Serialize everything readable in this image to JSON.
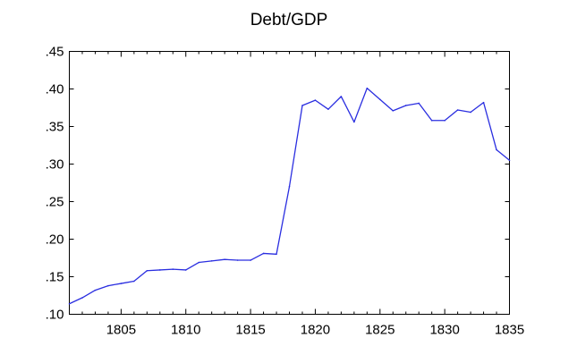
{
  "chart_data": {
    "type": "line",
    "title": "Debt/GDP",
    "xlabel": "",
    "ylabel": "",
    "xlim": [
      1801,
      1835
    ],
    "ylim": [
      0.1,
      0.45
    ],
    "x_ticks": [
      1805,
      1810,
      1815,
      1820,
      1825,
      1830,
      1835
    ],
    "x_tick_labels": [
      "1805",
      "1810",
      "1815",
      "1820",
      "1825",
      "1830",
      "1835"
    ],
    "y_ticks": [
      0.1,
      0.15,
      0.2,
      0.25,
      0.3,
      0.35,
      0.4,
      0.45
    ],
    "y_tick_labels": [
      ".10",
      ".15",
      ".20",
      ".25",
      ".30",
      ".35",
      ".40",
      ".45"
    ],
    "grid": false,
    "line_color": "#2a2ee0",
    "x": [
      1801,
      1802,
      1803,
      1804,
      1805,
      1806,
      1807,
      1808,
      1809,
      1810,
      1811,
      1812,
      1813,
      1814,
      1815,
      1816,
      1817,
      1818,
      1819,
      1820,
      1821,
      1822,
      1823,
      1824,
      1825,
      1826,
      1827,
      1828,
      1829,
      1830,
      1831,
      1832,
      1833,
      1834,
      1835
    ],
    "values": [
      0.114,
      0.122,
      0.132,
      0.138,
      0.141,
      0.144,
      0.158,
      0.159,
      0.16,
      0.159,
      0.169,
      0.171,
      0.173,
      0.172,
      0.172,
      0.181,
      0.18,
      0.27,
      0.378,
      0.385,
      0.373,
      0.39,
      0.356,
      0.401,
      0.386,
      0.371,
      0.378,
      0.381,
      0.358,
      0.358,
      0.372,
      0.369,
      0.382,
      0.319,
      0.305
    ]
  }
}
